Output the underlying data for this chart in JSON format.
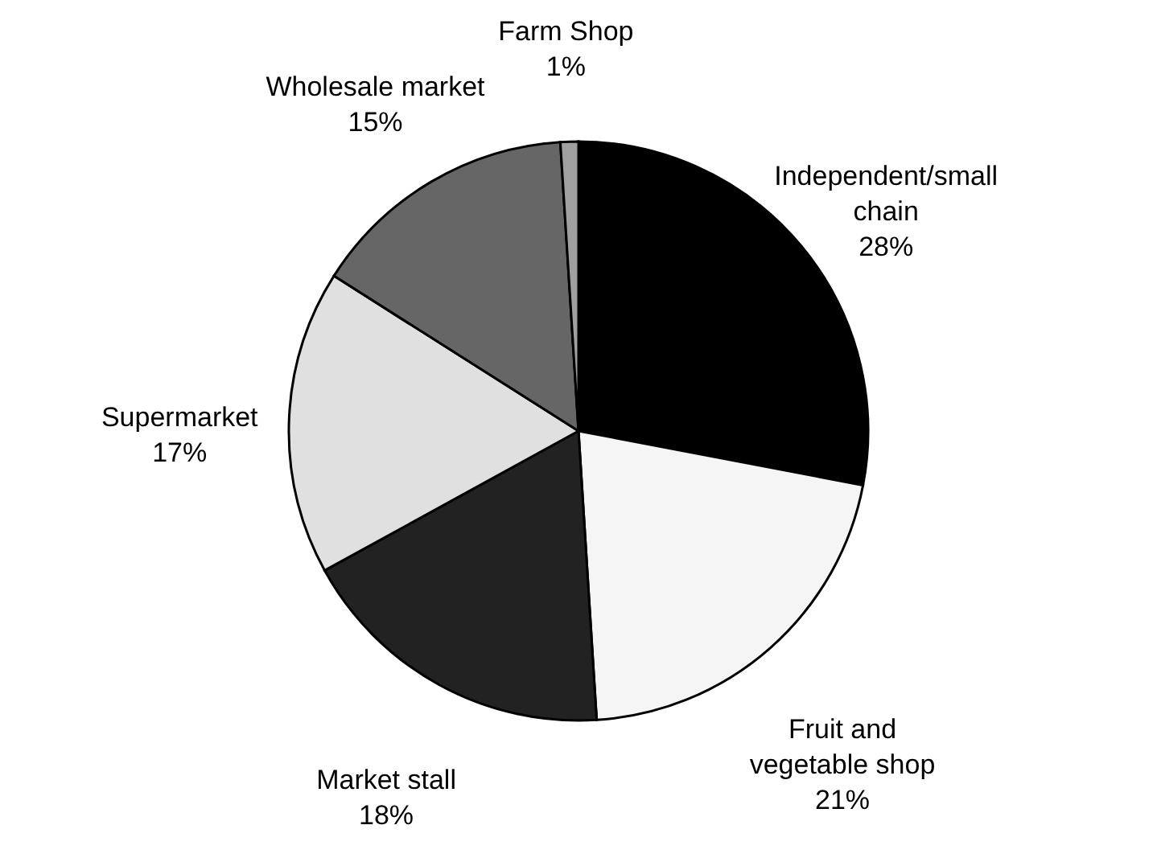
{
  "chart_data": {
    "type": "pie",
    "categories": [
      "Independent/small chain",
      "Fruit and vegetable shop",
      "Market stall",
      "Supermarket",
      "Wholesale market",
      "Farm Shop"
    ],
    "values": [
      28,
      21,
      18,
      17,
      15,
      1
    ],
    "value_labels": [
      "28%",
      "21%",
      "18%",
      "17%",
      "15%",
      "1%"
    ],
    "colors": [
      "#000000",
      "#f5f5f5",
      "#222222",
      "#e0e0e0",
      "#666666",
      "#a0a0a0"
    ]
  }
}
